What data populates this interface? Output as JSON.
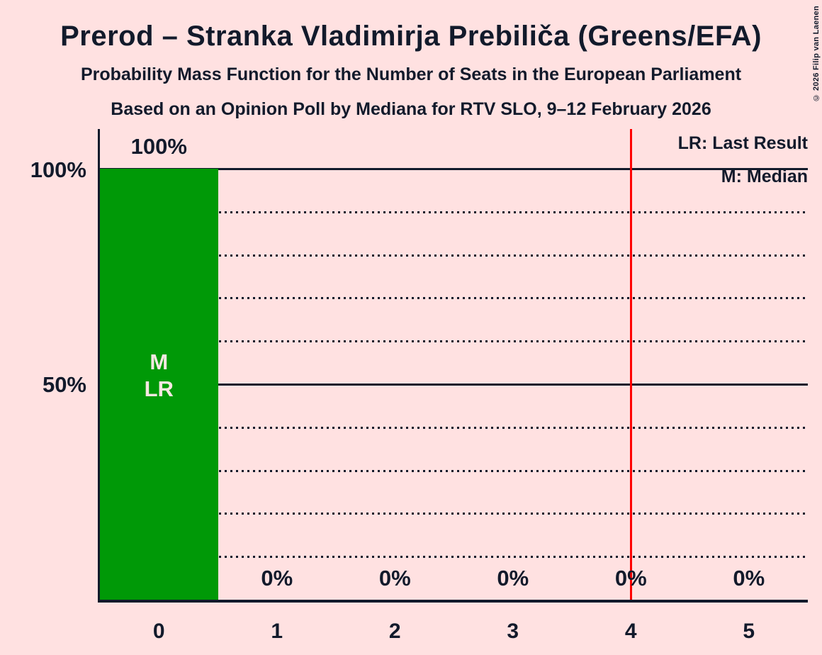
{
  "title": "Prerod – Stranka Vladimirja Prebiliča (Greens/EFA)",
  "subtitle": "Probability Mass Function for the Number of Seats in the European Parliament",
  "poll_info": "Based on an Opinion Poll by Mediana for RTV SLO, 9–12 February 2026",
  "copyright": "© 2026 Filip van Laenen",
  "legend": {
    "lr": "LR: Last Result",
    "m": "M: Median"
  },
  "y_axis_labels": [
    "100%",
    "50%"
  ],
  "annotations": {
    "m": "M",
    "lr": "LR"
  },
  "chart_data": {
    "type": "bar",
    "title": "Probability Mass Function for the Number of Seats in the European Parliament",
    "categories": [
      "0",
      "1",
      "2",
      "3",
      "4",
      "5"
    ],
    "values": [
      100,
      0,
      0,
      0,
      0,
      0
    ],
    "bar_value_labels": [
      "100%",
      "0%",
      "0%",
      "0%",
      "0%",
      "0%"
    ],
    "median_seats": 0,
    "last_result_seats": 0,
    "red_line_x": 4.5,
    "ylim": [
      0,
      100
    ],
    "ytick_solid_pct": [
      0,
      50,
      100
    ],
    "ytick_dotted_pct": [
      10,
      20,
      30,
      40,
      60,
      70,
      80,
      90
    ],
    "grid": true,
    "legend_position": "top-right",
    "colors": {
      "bar": "#009907",
      "background": "#FFE1E1",
      "text": "#121A2B",
      "red_line": "#FF0000",
      "bar_annotation_text": "#F8E8E2"
    }
  }
}
